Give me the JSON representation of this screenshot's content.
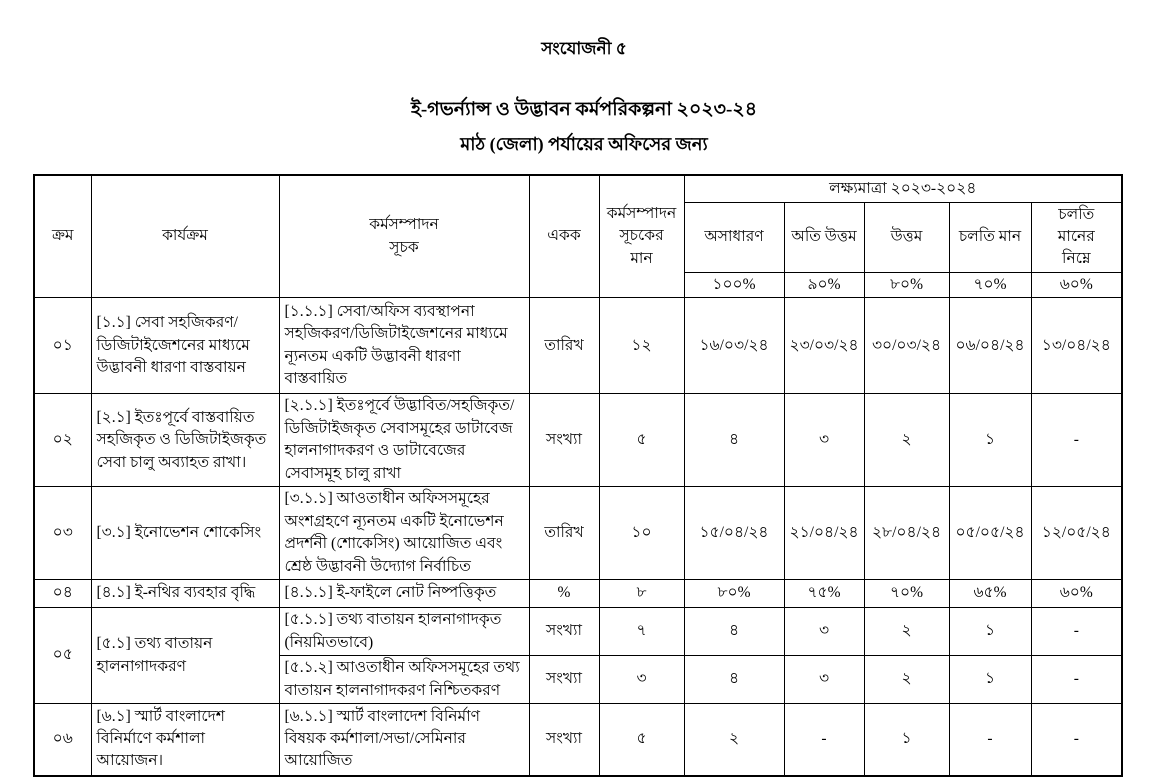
{
  "page": {
    "annexure": "সংযোজনী ৫",
    "title": "ই-গভর্ন্যান্স ও উদ্ভাবন কর্মপরিকল্পনা ২০২৩-২৪",
    "subtitle": "মাঠ (জেলা) পর্যায়ের অফিসের জন্য"
  },
  "table": {
    "headers": {
      "serial": "ক্রম",
      "activity": "কার্যক্রম",
      "indicator": "কর্মসম্পাদন\nসূচক",
      "unit": "একক",
      "weight": "কর্মসম্পাদন\nসূচকের\nমান",
      "target_group": "লক্ষ্যমাত্রা ২০২৩-২০২৪",
      "target_levels": [
        "অসাধারণ",
        "অতি উত্তম",
        "উত্তম",
        "চলতি মান",
        "চলতি\nমানের\nনিম্নে"
      ],
      "target_percents": [
        "১০০%",
        "৯০%",
        "৮০%",
        "৭০%",
        "৬০%"
      ]
    },
    "rows": [
      {
        "serial": "০১",
        "activity": "[১.১] সেবা সহজিকরণ/ ডিজিটাইজেশনের মাধ্যমে উদ্ভাবনী ধারণা বাস্তবায়ন",
        "indicator": "[১.১.১] সেবা/অফিস ব্যবস্থাপনা সহজিকরণ/ডিজিটাইজেশনের মাধ্যমে ন্যূনতম একটি উদ্ভাবনী ধারণা বাস্তবায়িত",
        "unit": "তারিখ",
        "weight": "১২",
        "targets": [
          "১৬/০৩/২৪",
          "২৩/০৩/২৪",
          "৩০/০৩/২৪",
          "০৬/০৪/২৪",
          "১৩/০৪/২৪"
        ]
      },
      {
        "serial": "০২",
        "activity": "[২.১] ইতঃপূর্বে বাস্তবায়িত সহজিকৃত ও ডিজিটাইজকৃত সেবা চালু অব্যাহত রাখা।",
        "indicator": "[২.১.১] ইতঃপূর্বে উদ্ভাবিত/সহজিকৃত/ ডিজিটাইজকৃত সেবাসমূহের ডাটাবেজ হালনাগাদকরণ ও  ডাটাবেজের সেবাসমূহ চালু  রাখা",
        "unit": "সংখ্যা",
        "weight": "৫",
        "targets": [
          "৪",
          "৩",
          "২",
          "১",
          "-"
        ]
      },
      {
        "serial": "০৩",
        "activity": "[৩.১]  ইনোভেশন শোকেসিং",
        "indicator": "[৩.১.১] আওতাধীন অফিসসমূহের অংশগ্রহণে ন্যূনতম একটি ইনোভেশন প্রদর্শনী  (শোকেসিং) আয়োজিত এবং শ্রেষ্ঠ উদ্ভাবনী উদ্যোগ নির্বাচিত",
        "unit": "তারিখ",
        "weight": "১০",
        "targets": [
          "১৫/০৪/২৪",
          "২১/০৪/২৪",
          "২৮/০৪/২৪",
          "০৫/০৫/২৪",
          "১২/০৫/২৪"
        ]
      },
      {
        "serial": "০৪",
        "activity": "[৪.১] ই-নথির ব্যবহার বৃদ্ধি",
        "indicator": "[৪.১.১] ই-ফাইলে নোট নিষ্পত্তিকৃত",
        "unit": "%",
        "weight": "৮",
        "targets": [
          "৮০%",
          "৭৫%",
          "৭০%",
          "৬৫%",
          "৬০%"
        ]
      },
      {
        "serial": "০৫",
        "serial_rowspan": 2,
        "activity": "[৫.১] তথ্য বাতায়ন হালনাগাদকরণ",
        "activity_rowspan": 2,
        "indicator": "[৫.১.১] তথ্য বাতায়ন হালনাগাদকৃত (নিয়মিতভাবে)",
        "unit": "সংখ্যা",
        "weight": "৭",
        "targets": [
          "৪",
          "৩",
          "২",
          "১",
          "-"
        ]
      },
      {
        "serial": null,
        "activity": null,
        "indicator": "[৫.১.২] আওতাধীন অফিসসমূহের তথ্য বাতায়ন হালনাগাদকরণ নিশ্চিতকরণ",
        "unit": "সংখ্যা",
        "weight": "৩",
        "targets": [
          "৪",
          "৩",
          "২",
          "১",
          "-"
        ]
      },
      {
        "serial": "০৬",
        "activity": "[৬.১]  স্মার্ট বাংলাদেশ বিনির্মাণে কর্মশালা আয়োজন।",
        "indicator": "[৬.১.১] স্মার্ট বাংলাদেশ বিনির্মাণ বিষয়ক কর্মশালা/সভা/সেমিনার আয়োজিত",
        "unit": "সংখ্যা",
        "weight": "৫",
        "targets": [
          "২",
          "-",
          "১",
          "-",
          "-"
        ]
      }
    ]
  }
}
